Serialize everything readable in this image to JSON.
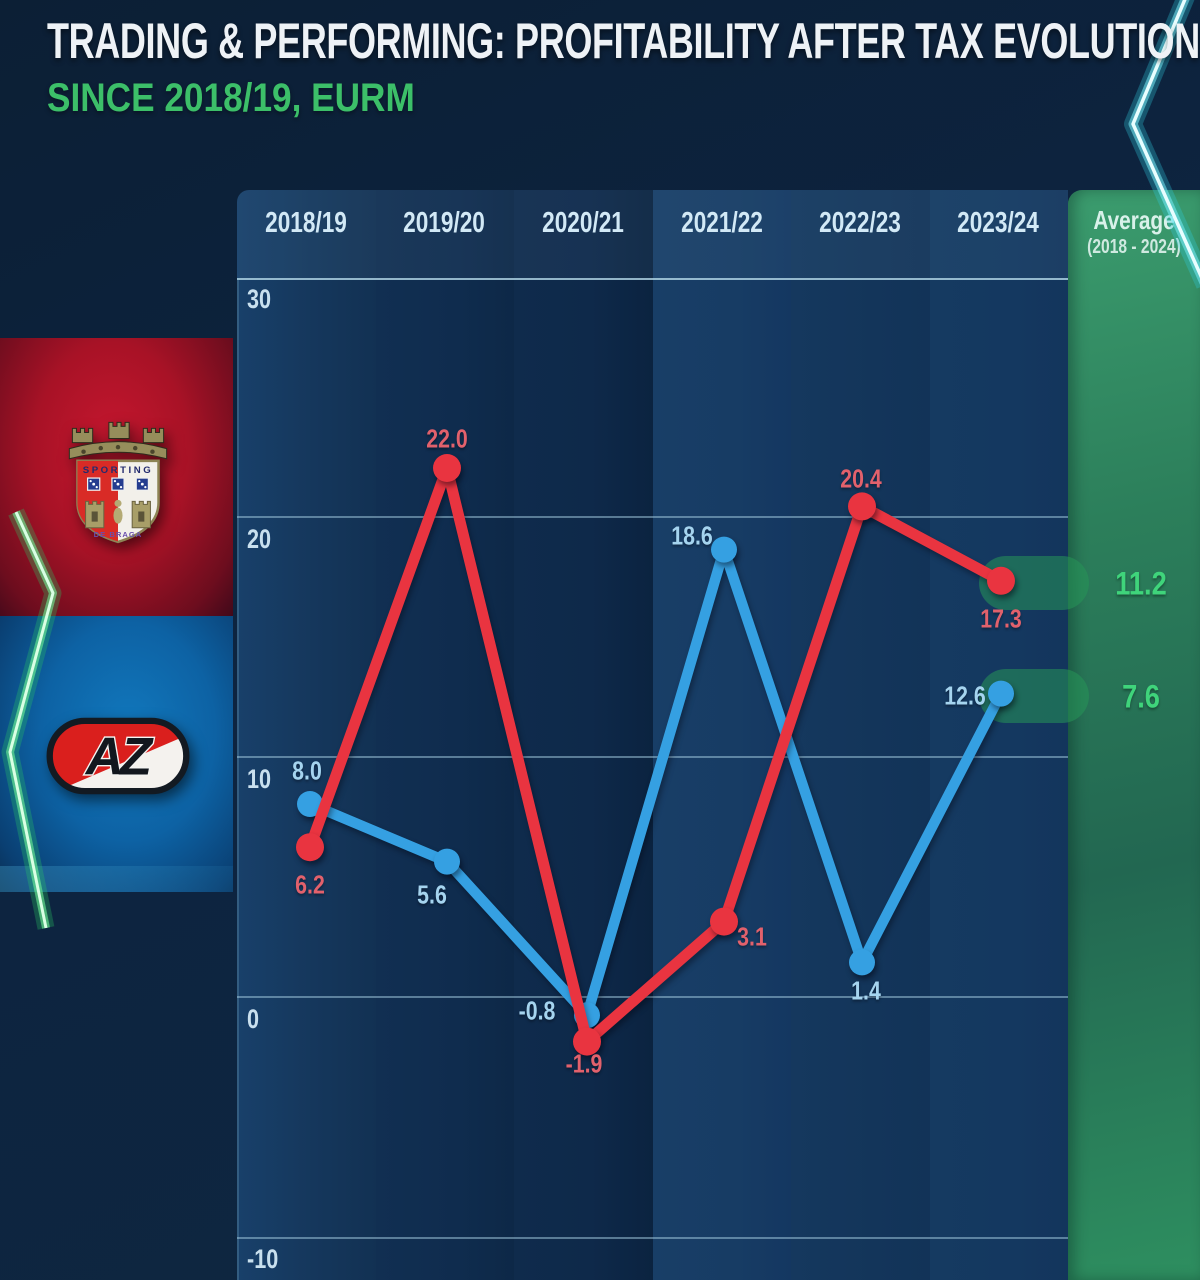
{
  "page": {
    "title": "TRADING & PERFORMING: PROFITABILITY AFTER TAX EVOLUTION",
    "subtitle": "SINCE 2018/19, EURM"
  },
  "clubs": {
    "braga": {
      "name": "SC Braga",
      "crest_top_text": "SPORTING",
      "crest_bottom_text": "DE BRAGA"
    },
    "az": {
      "name": "AZ Alkmaar",
      "monogram": "AZ"
    }
  },
  "chart_data": {
    "type": "line",
    "title": "Trading & Performing: Profitability after tax evolution since 2018/19 (EURM)",
    "categories": [
      "2018/19",
      "2019/20",
      "2020/21",
      "2021/22",
      "2022/23",
      "2023/24"
    ],
    "series": [
      {
        "name": "SC Braga",
        "color": "#e93440",
        "values": [
          6.2,
          22.0,
          -1.9,
          3.1,
          20.4,
          17.3
        ],
        "labels": [
          "6.2",
          "22.0",
          "-1.9",
          "3.1",
          "20.4",
          "17.3"
        ],
        "average": 11.2,
        "average_label": "11.2"
      },
      {
        "name": "AZ Alkmaar",
        "color": "#35a0e2",
        "values": [
          8.0,
          5.6,
          -0.8,
          18.6,
          1.4,
          12.6
        ],
        "labels": [
          "8.0",
          "5.6",
          "-0.8",
          "18.6",
          "1.4",
          "12.6"
        ],
        "average": 7.6,
        "average_label": "7.6"
      }
    ],
    "y_ticks": [
      30,
      20,
      10,
      0,
      -10
    ],
    "y_tick_labels": [
      "30",
      "20",
      "10",
      "0",
      "-10"
    ],
    "ylim": [
      -12,
      33
    ],
    "average_column": {
      "line1": "Average",
      "line2": "(2018 - 2024)"
    },
    "unit": "EURM",
    "grid": true,
    "legend_position": "left-logos"
  },
  "colors": {
    "braga_red": "#e93440",
    "az_blue": "#35a0e2",
    "accent_green": "#3fd47b",
    "subtitle_green": "#3cbf69",
    "background_navy": "#0d2440",
    "average_column_green": "#2c7f5b"
  }
}
